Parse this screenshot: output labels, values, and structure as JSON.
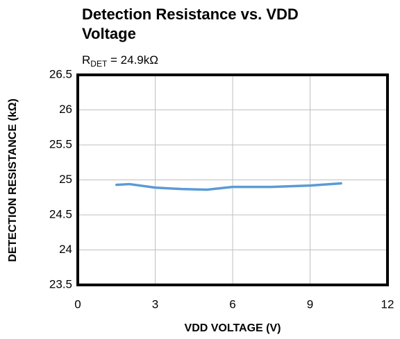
{
  "chart_data": {
    "type": "line",
    "title": [
      "Detection Resistance vs. VDD",
      "Voltage"
    ],
    "subtitle": {
      "symbol": "R",
      "subscript": "DET",
      "text": " = 24.9kΩ"
    },
    "x_label": "VDD VOLTAGE (V)",
    "y_label": "DETECTION RESISTANCE (kΩ)",
    "series": [
      {
        "name": "RDET",
        "color": "#5b9bd5",
        "x": [
          1.5,
          2,
          3,
          4,
          5,
          6,
          7.5,
          9,
          10.2
        ],
        "values": [
          24.93,
          24.94,
          24.89,
          24.87,
          24.86,
          24.9,
          24.9,
          24.92,
          24.95
        ]
      }
    ],
    "xlim": [
      0,
      12
    ],
    "xticks": [
      0,
      3,
      6,
      9,
      12
    ],
    "ylim": [
      23.5,
      26.5
    ],
    "yticks": [
      23.5,
      24,
      24.5,
      25,
      25.5,
      26,
      26.5
    ],
    "grid": true
  }
}
